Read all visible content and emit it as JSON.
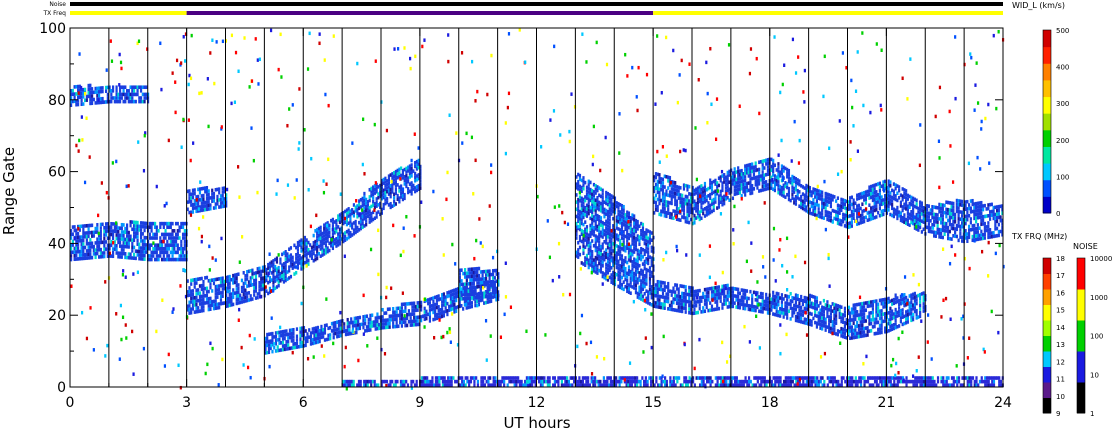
{
  "chart_data": {
    "type": "heatmap",
    "title": "",
    "xlabel": "UT hours",
    "ylabel": "Range Gate",
    "xlim": [
      0,
      24
    ],
    "ylim": [
      0,
      100
    ],
    "x_ticks": [
      "0",
      "3",
      "6",
      "9",
      "12",
      "15",
      "18",
      "21",
      "24"
    ],
    "y_ticks": [
      "0",
      "20",
      "40",
      "60",
      "80",
      "100"
    ],
    "status_bars": [
      {
        "label": "Noise",
        "segments": [
          {
            "from": 0,
            "to": 24,
            "color": "#000000"
          }
        ]
      },
      {
        "label": "TX Freq",
        "segments": [
          {
            "from": 0,
            "to": 3,
            "color": "#ffff00"
          },
          {
            "from": 3,
            "to": 15,
            "color": "#4b0082"
          },
          {
            "from": 15,
            "to": 24,
            "color": "#ffff00"
          }
        ]
      }
    ],
    "scan_boundaries_ut": [
      1.0,
      2.0,
      3.0,
      4.0,
      5.0,
      6.0,
      7.0,
      8.0,
      9.0,
      10.0,
      11.0,
      12.0,
      13.0,
      14.0,
      15.0,
      16.0,
      17.0,
      18.0,
      19.0,
      20.0,
      21.0,
      22.0,
      23.0
    ],
    "series": [
      {
        "kind": "band",
        "x": [
          0,
          1,
          2,
          3
        ],
        "y_low": [
          35,
          36,
          35,
          35
        ],
        "y_high": [
          45,
          45,
          46,
          46
        ],
        "color": "#1a3fe0"
      },
      {
        "kind": "band",
        "x": [
          0,
          1,
          2
        ],
        "y_low": [
          78,
          79,
          79
        ],
        "y_high": [
          84,
          83,
          84
        ],
        "color": "#1a3fe0"
      },
      {
        "kind": "band",
        "x": [
          3,
          4,
          5,
          6,
          7,
          8,
          9
        ],
        "y_low": [
          20,
          22,
          25,
          33,
          40,
          48,
          55
        ],
        "y_high": [
          30,
          30,
          34,
          42,
          48,
          58,
          63
        ],
        "color": "#1a3fe0"
      },
      {
        "kind": "band",
        "x": [
          3,
          4
        ],
        "y_low": [
          48,
          50
        ],
        "y_high": [
          55,
          55
        ],
        "color": "#1a3fe0"
      },
      {
        "kind": "band",
        "x": [
          5,
          6,
          7,
          8,
          9,
          10,
          11
        ],
        "y_low": [
          9,
          11,
          14,
          16,
          17,
          21,
          24
        ],
        "y_high": [
          15,
          16,
          18,
          21,
          24,
          27,
          30
        ],
        "color": "#1a3fe0"
      },
      {
        "kind": "band",
        "x": [
          10,
          11
        ],
        "y_low": [
          24,
          25
        ],
        "y_high": [
          33,
          32
        ],
        "color": "#1a3fe0"
      },
      {
        "kind": "band",
        "x": [
          13,
          14,
          15
        ],
        "y_low": [
          35,
          28,
          22
        ],
        "y_high": [
          60,
          52,
          42
        ],
        "color": "#1a3fe0"
      },
      {
        "kind": "band",
        "x": [
          15,
          16,
          17,
          18,
          19,
          20,
          21,
          22,
          23,
          24
        ],
        "y_low": [
          48,
          45,
          52,
          55,
          48,
          44,
          48,
          42,
          40,
          42
        ],
        "y_high": [
          60,
          55,
          60,
          64,
          55,
          52,
          58,
          50,
          52,
          50
        ],
        "color": "#1a3fe0"
      },
      {
        "kind": "band",
        "x": [
          15,
          16,
          17,
          18,
          19,
          20,
          21,
          22
        ],
        "y_low": [
          22,
          20,
          22,
          20,
          17,
          13,
          15,
          20
        ],
        "y_high": [
          30,
          27,
          28,
          26,
          25,
          22,
          25,
          26
        ],
        "color": "#1a3fe0"
      },
      {
        "kind": "band",
        "x": [
          7,
          9,
          11,
          13,
          15,
          17,
          19,
          21,
          23,
          24
        ],
        "y_low": [
          0,
          0,
          0,
          0,
          0,
          0,
          0,
          0,
          0,
          0
        ],
        "y_high": [
          2,
          2,
          3,
          3,
          3,
          3,
          3,
          3,
          3,
          2
        ],
        "color": "#2a2ad8"
      }
    ],
    "colorbars": [
      {
        "label": "WID_L (km/s)",
        "ticks": [
          "0",
          "100",
          "200",
          "300",
          "400",
          "500"
        ],
        "colors": [
          "#0000c8",
          "#0050ff",
          "#00c8ff",
          "#00e8a0",
          "#00d000",
          "#a0e000",
          "#ffff00",
          "#ffc000",
          "#ff8000",
          "#ff2000",
          "#d00000"
        ]
      },
      {
        "label": "TX FRQ (MHz)",
        "ticks": [
          "9",
          "10",
          "11",
          "12",
          "13",
          "14",
          "15",
          "16",
          "17",
          "18"
        ],
        "colors": [
          "#000000",
          "#5a1a8a",
          "#1a1ae0",
          "#00c8ff",
          "#00d000",
          "#a0ff00",
          "#ffff00",
          "#ffa000",
          "#ff4000",
          "#d00000"
        ]
      },
      {
        "label": "NOISE",
        "ticks": [
          "1",
          "10",
          "100",
          "1000",
          "10000"
        ],
        "colors": [
          "#000000",
          "#1a1ae0",
          "#00d000",
          "#ffff00",
          "#ff0000"
        ]
      }
    ]
  }
}
